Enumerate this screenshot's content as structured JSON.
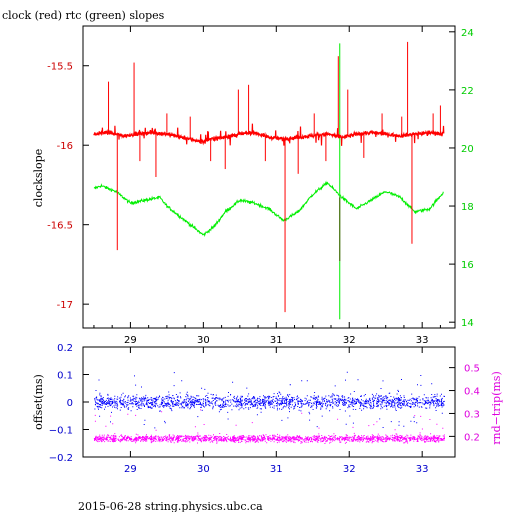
{
  "title": "clock (red) rtc (green) slopes",
  "footer": "2015-06-28 string.physics.ubc.ca",
  "colors": {
    "clock": "#ff0000",
    "rtc": "#00ee00",
    "rtc_spike": "#3a6a00",
    "offset": "#0000ff",
    "roundtrip": "#ff00ff",
    "left_axis_top": "#cc0000",
    "right_axis_top": "#00cc00",
    "left_axis_bottom": "#0000cc",
    "right_axis_bottom": "#dd00dd"
  },
  "chart_data": [
    {
      "type": "line",
      "title": "clock (red) rtc (green) slopes",
      "xlim": [
        28.35,
        33.45
      ],
      "x_ticks": [
        29,
        30,
        31,
        32,
        33
      ],
      "grid": false,
      "y_left": {
        "label": "clockslope",
        "lim": [
          -17.15,
          -15.25
        ],
        "ticks": [
          -15.5,
          -16,
          -16.5,
          -17
        ],
        "tick_labels": [
          "-15.5",
          "-16",
          "-16.5",
          "-17"
        ]
      },
      "y_right": {
        "label": "",
        "lim": [
          13.8,
          24.2
        ],
        "ticks": [
          14,
          16,
          18,
          20,
          22,
          24
        ],
        "tick_labels": [
          "14",
          "16",
          "18",
          "20",
          "22",
          "24"
        ]
      },
      "series": [
        {
          "name": "clock",
          "axis": "left",
          "x": [
            28.5,
            28.7,
            28.9,
            29.1,
            29.3,
            29.5,
            29.7,
            29.9,
            30.0,
            30.1,
            30.3,
            30.5,
            30.7,
            30.9,
            31.1,
            31.3,
            31.5,
            31.7,
            31.9,
            32.1,
            32.3,
            32.5,
            32.7,
            32.9,
            33.1,
            33.3
          ],
          "y": [
            -15.93,
            -15.92,
            -15.94,
            -15.93,
            -15.92,
            -15.93,
            -15.95,
            -15.97,
            -15.98,
            -15.96,
            -15.95,
            -15.93,
            -15.92,
            -15.95,
            -15.96,
            -15.95,
            -15.94,
            -15.93,
            -15.95,
            -15.93,
            -15.92,
            -15.93,
            -15.94,
            -15.93,
            -15.92,
            -15.93
          ],
          "spikes": [
            {
              "x": 28.7,
              "y": -15.6
            },
            {
              "x": 28.82,
              "y": -16.66
            },
            {
              "x": 29.05,
              "y": -15.48
            },
            {
              "x": 29.13,
              "y": -16.1
            },
            {
              "x": 29.35,
              "y": -16.2
            },
            {
              "x": 29.5,
              "y": -15.8
            },
            {
              "x": 29.82,
              "y": -15.82
            },
            {
              "x": 30.1,
              "y": -16.1
            },
            {
              "x": 30.3,
              "y": -16.15
            },
            {
              "x": 30.48,
              "y": -15.65
            },
            {
              "x": 30.62,
              "y": -15.62
            },
            {
              "x": 30.85,
              "y": -16.1
            },
            {
              "x": 31.12,
              "y": -17.05
            },
            {
              "x": 31.3,
              "y": -16.18
            },
            {
              "x": 31.52,
              "y": -15.8
            },
            {
              "x": 31.68,
              "y": -16.1
            },
            {
              "x": 31.85,
              "y": -15.44
            },
            {
              "x": 31.98,
              "y": -15.65
            },
            {
              "x": 32.2,
              "y": -16.08
            },
            {
              "x": 32.45,
              "y": -15.8
            },
            {
              "x": 32.72,
              "y": -15.82
            },
            {
              "x": 32.8,
              "y": -15.35
            },
            {
              "x": 32.86,
              "y": -16.62
            },
            {
              "x": 33.15,
              "y": -15.8
            },
            {
              "x": 33.25,
              "y": -15.75
            }
          ]
        },
        {
          "name": "rtc",
          "axis": "right",
          "x": [
            28.5,
            28.6,
            28.8,
            28.9,
            29.0,
            29.2,
            29.4,
            29.5,
            29.6,
            29.7,
            29.85,
            30.0,
            30.15,
            30.3,
            30.5,
            30.7,
            30.9,
            31.1,
            31.3,
            31.5,
            31.7,
            31.9,
            32.1,
            32.3,
            32.5,
            32.7,
            32.9,
            33.1,
            33.3
          ],
          "y": [
            18.6,
            18.7,
            18.5,
            18.3,
            18.1,
            18.2,
            18.3,
            18.0,
            17.8,
            17.6,
            17.3,
            17.0,
            17.3,
            17.8,
            18.2,
            18.1,
            17.9,
            17.5,
            17.8,
            18.4,
            18.8,
            18.3,
            17.9,
            18.2,
            18.5,
            18.3,
            17.8,
            17.9,
            18.5
          ],
          "spike": {
            "x": 31.87,
            "lo": 14.1,
            "hi": 23.6
          }
        }
      ]
    },
    {
      "type": "scatter",
      "xlim": [
        28.35,
        33.45
      ],
      "x_ticks": [
        29,
        30,
        31,
        32,
        33
      ],
      "grid": false,
      "y_left": {
        "label": "offset(ms)",
        "lim": [
          -0.2,
          0.2
        ],
        "ticks": [
          0.2,
          0.1,
          0,
          -0.1,
          -0.2
        ],
        "tick_labels": [
          "0.2",
          "0.1",
          "0",
          "−0.1",
          "−0.2"
        ]
      },
      "y_right": {
        "label": "rnd−trip(ms)",
        "lim": [
          0.11,
          0.59
        ],
        "ticks": [
          0.2,
          0.3,
          0.4,
          0.5
        ],
        "tick_labels": [
          "0.2",
          "0.3",
          "0.4",
          "0.5"
        ]
      },
      "series": [
        {
          "name": "offset",
          "axis": "left",
          "x_range": [
            28.5,
            33.3
          ],
          "center": 0.0,
          "spread": 0.045
        },
        {
          "name": "rnd-trip",
          "axis": "right",
          "x_range": [
            28.5,
            33.3
          ],
          "center": 0.19,
          "spread": 0.015
        }
      ]
    }
  ]
}
